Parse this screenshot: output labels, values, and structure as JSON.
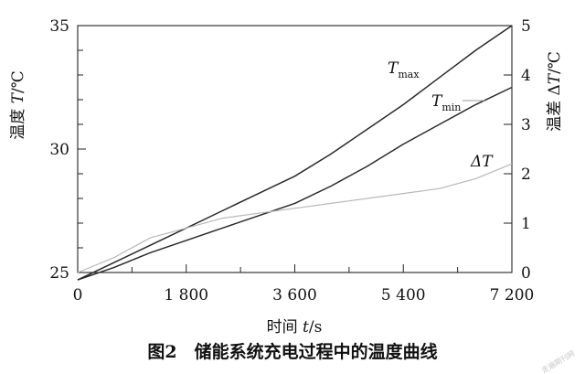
{
  "chart_data": {
    "type": "line",
    "x": [
      0,
      600,
      1200,
      1800,
      2400,
      3000,
      3600,
      4200,
      4800,
      5400,
      6000,
      6600,
      7200
    ],
    "xlim": [
      0,
      7200
    ],
    "xticks": [
      0,
      1800,
      3600,
      5400,
      7200
    ],
    "xtick_labels": [
      "0",
      "1 800",
      "3 600",
      "5 400",
      "7 200"
    ],
    "xminor_ticks": [
      900,
      2700,
      4500,
      6300
    ],
    "xlabel_prefix": "时间 ",
    "xlabel_var": "t",
    "xlabel_unit": "/s",
    "y_left": {
      "lim": [
        25,
        35
      ],
      "ticks": [
        25,
        30,
        35
      ],
      "tick_labels": [
        "25",
        "30",
        "35"
      ],
      "minor_ticks": [
        26,
        27,
        28,
        29,
        31,
        32,
        33,
        34
      ],
      "label_prefix": "温度 ",
      "label_var": "T",
      "label_unit": "/℃"
    },
    "y_right": {
      "lim": [
        0,
        5
      ],
      "ticks": [
        0,
        1,
        2,
        3,
        4,
        5
      ],
      "tick_labels": [
        "0",
        "1",
        "2",
        "3",
        "4",
        "5"
      ],
      "label_prefix": "温差 Δ",
      "label_var": "T",
      "label_unit": "/℃"
    },
    "series": [
      {
        "name_main": "T",
        "name_sub": "max",
        "axis": "left",
        "color": "#2a2a2a",
        "values": [
          24.7,
          25.4,
          26.1,
          26.8,
          27.5,
          28.2,
          28.9,
          29.8,
          30.8,
          31.8,
          32.9,
          34.0,
          35.0
        ]
      },
      {
        "name_main": "T",
        "name_sub": "min",
        "axis": "left",
        "color": "#2a2a2a",
        "values": [
          24.7,
          25.2,
          25.8,
          26.3,
          26.8,
          27.3,
          27.8,
          28.5,
          29.3,
          30.2,
          31.0,
          31.8,
          32.5
        ]
      },
      {
        "name_main": "ΔT",
        "name_sub": "",
        "axis": "right",
        "color": "#b8b8b8",
        "values": [
          0,
          0.3,
          0.7,
          0.9,
          1.1,
          1.2,
          1.3,
          1.4,
          1.5,
          1.6,
          1.7,
          1.9,
          2.2
        ]
      }
    ]
  },
  "caption": "图2　储能系统充电过程中的温度曲线",
  "watermark": "走遍期刊网"
}
